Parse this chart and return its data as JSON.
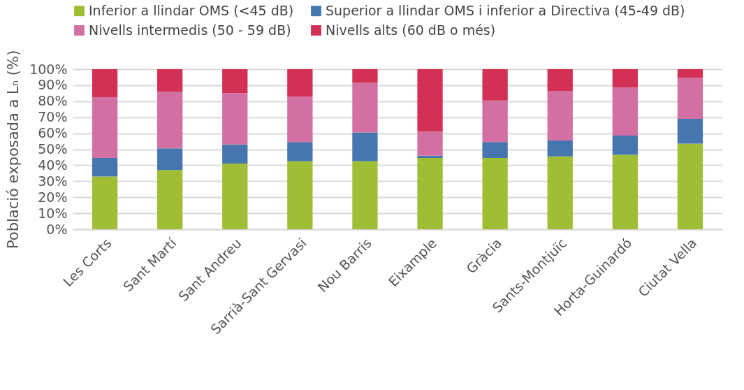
{
  "chart_data": {
    "type": "bar",
    "stacked": true,
    "ylabel": "Població exposada a Lₙ (%)",
    "categories": [
      "Les Corts",
      "Sant Martí",
      "Sant Andreu",
      "Sarrià-Sant Gervasi",
      "Nou Barris",
      "Eixample",
      "Gràcia",
      "Sants-Montjuïc",
      "Horta-Guinardó",
      "Ciutat Vella"
    ],
    "series": [
      {
        "name": "Inferior a llindar OMS (<45 dB)",
        "color": "#9fbe35",
        "values": [
          33,
          37,
          41,
          42.5,
          42.5,
          44.5,
          44.5,
          45.5,
          46.5,
          53.5
        ]
      },
      {
        "name": "Superior a llindar OMS i inferior a Directiva (45-49 dB)",
        "color": "#4676b0",
        "values": [
          11.5,
          13.5,
          12,
          12,
          18,
          1.5,
          10,
          10,
          12,
          15.5
        ]
      },
      {
        "name": "Nivells intermedis (50 - 59 dB)",
        "color": "#d36fa3",
        "values": [
          38,
          35.5,
          32,
          28.5,
          31,
          15,
          26,
          31,
          30,
          25.5
        ]
      },
      {
        "name": "Nivells alts (60 dB o més)",
        "color": "#d23055",
        "values": [
          17.5,
          14,
          15,
          17,
          8.5,
          39,
          19.5,
          13.5,
          11.5,
          5.5
        ]
      }
    ],
    "ylim": [
      0,
      100
    ],
    "yticks": [
      {
        "value": 0,
        "label": "0%"
      },
      {
        "value": 10,
        "label": "10%"
      },
      {
        "value": 20,
        "label": "20%"
      },
      {
        "value": 30,
        "label": "30%"
      },
      {
        "value": 40,
        "label": "40%"
      },
      {
        "value": 50,
        "label": "50%"
      },
      {
        "value": 60,
        "label": "60%"
      },
      {
        "value": 70,
        "label": "70%"
      },
      {
        "value": 80,
        "label": "80%"
      },
      {
        "value": 90,
        "label": "90%"
      },
      {
        "value": 100,
        "label": "100%"
      }
    ],
    "grid": "y",
    "legend": "top"
  }
}
